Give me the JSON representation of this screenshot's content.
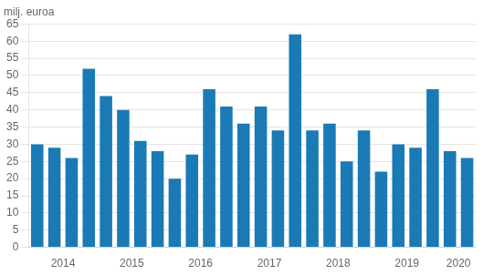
{
  "chart_data": {
    "type": "bar",
    "ylabel": "milj. euroa",
    "categories": [
      null,
      "2014",
      null,
      null,
      null,
      "2015",
      null,
      null,
      null,
      "2016",
      null,
      null,
      null,
      "2017",
      null,
      null,
      null,
      "2018",
      null,
      null,
      null,
      "2019",
      null,
      null,
      "2020",
      null
    ],
    "values": [
      30,
      29,
      26,
      52,
      44,
      40,
      31,
      28,
      20,
      27,
      46,
      41,
      36,
      41,
      34,
      62,
      34,
      36,
      25,
      34,
      22,
      30,
      29,
      46,
      28,
      26
    ],
    "color": "#1a7ab5",
    "ylim": [
      0,
      65
    ],
    "yticks": [
      0,
      5,
      10,
      15,
      20,
      25,
      30,
      35,
      40,
      45,
      50,
      55,
      60,
      65
    ],
    "grid": true
  }
}
